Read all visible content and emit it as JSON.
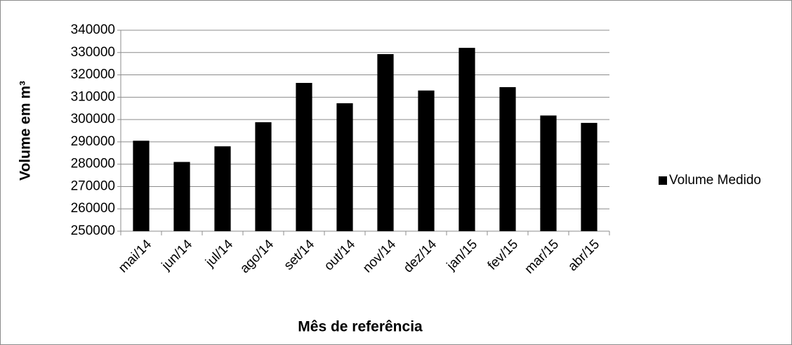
{
  "chart_data": {
    "type": "bar",
    "categories": [
      "mai/14",
      "jun/14",
      "jul/14",
      "ago/14",
      "set/14",
      "out/14",
      "nov/14",
      "dez/14",
      "jan/15",
      "fev/15",
      "mar/15",
      "abr/15"
    ],
    "series": [
      {
        "name": "Volume Medido",
        "color": "#000000",
        "values": [
          290500,
          281000,
          288000,
          298800,
          316400,
          307300,
          329300,
          313000,
          332100,
          314500,
          301800,
          298500
        ]
      }
    ],
    "ylim": [
      250000,
      340000
    ],
    "yticks": [
      250000,
      260000,
      270000,
      280000,
      290000,
      300000,
      310000,
      320000,
      330000,
      340000
    ],
    "grid": true,
    "legend": "right",
    "y_label": "Volume em m³",
    "x_label": "Mês de referência"
  }
}
